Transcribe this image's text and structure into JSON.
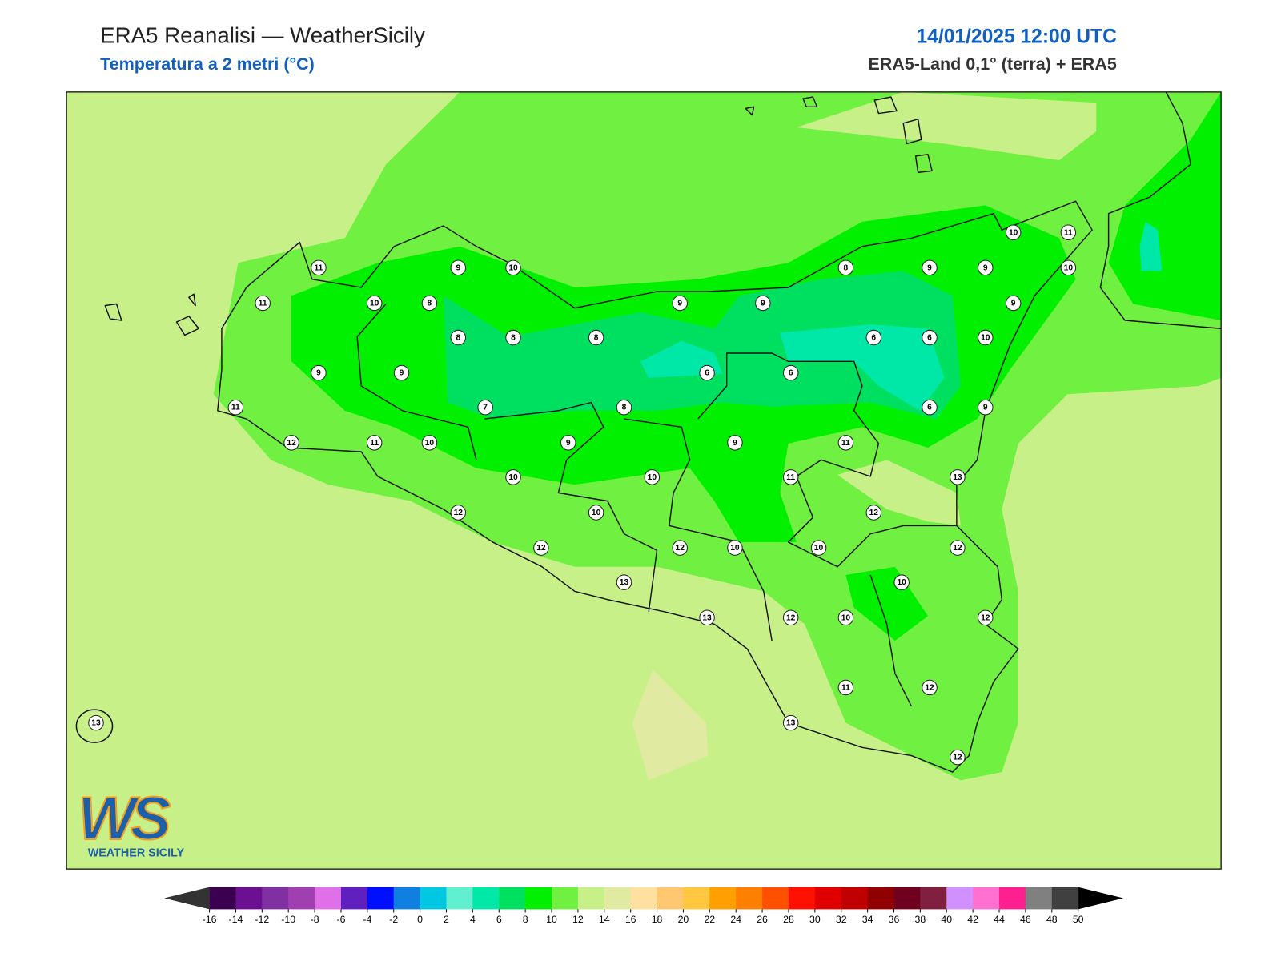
{
  "header": {
    "title": "ERA5 Reanalisi — WeatherSicily",
    "subtitle": "Temperatura a 2 metri (°C)",
    "datetime": "14/01/2025 12:00 UTC",
    "source": "ERA5-Land 0,1° (terra) + ERA5"
  },
  "stations": [
    11,
    9,
    10,
    11,
    10,
    8,
    9,
    9,
    8,
    9,
    9,
    10,
    11,
    10,
    9,
    8,
    8,
    8,
    6,
    6,
    10,
    9,
    9,
    6,
    6,
    11,
    7,
    8,
    6,
    9,
    12,
    11,
    10,
    9,
    9,
    11,
    10,
    10,
    11,
    13,
    12,
    10,
    12,
    12,
    12,
    10,
    10,
    12,
    13,
    10,
    13,
    12,
    10,
    12,
    11,
    12,
    13,
    13,
    12
  ],
  "colorbar": {
    "ticks": [
      -16,
      -14,
      -12,
      -10,
      -8,
      -6,
      -4,
      -2,
      0,
      2,
      4,
      6,
      8,
      10,
      12,
      14,
      16,
      18,
      20,
      22,
      24,
      26,
      28,
      30,
      32,
      34,
      36,
      38,
      40,
      42,
      44,
      46,
      48,
      50
    ],
    "colors": [
      "#3c0050",
      "#6a1090",
      "#8030a0",
      "#a040b0",
      "#e070e8",
      "#6020c0",
      "#0010ff",
      "#1080e0",
      "#00c8e0",
      "#60f0d0",
      "#00e8a8",
      "#00e060",
      "#00f000",
      "#70f040",
      "#c8f088",
      "#e0eaa0",
      "#ffe0a0",
      "#ffc870",
      "#ffc840",
      "#ffa000",
      "#ff8000",
      "#ff5000",
      "#ff1000",
      "#e00000",
      "#c00000",
      "#900000",
      "#700020",
      "#802040",
      "#d090ff",
      "#ff70d0",
      "#ff2090",
      "#808080",
      "#404040"
    ],
    "under": "#333333",
    "over": "#000000"
  },
  "logo": {
    "mark": "WS",
    "name": "WEATHER SICILY"
  }
}
